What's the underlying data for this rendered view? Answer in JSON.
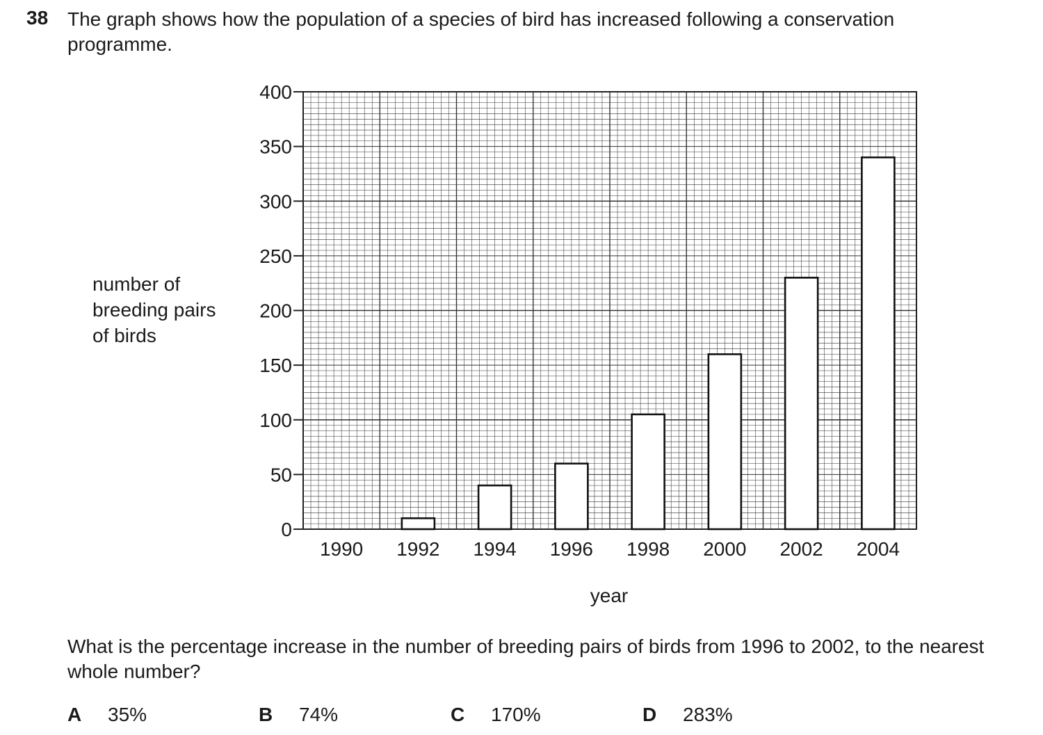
{
  "question": {
    "number": "38",
    "text": "The graph shows how the population of a species of bird has increased following a conservation programme.",
    "subquestion": "What is the percentage increase in the number of breeding pairs of birds from 1996 to 2002, to the nearest whole number?",
    "options": [
      {
        "letter": "A",
        "text": "35%"
      },
      {
        "letter": "B",
        "text": "74%"
      },
      {
        "letter": "C",
        "text": "170%"
      },
      {
        "letter": "D",
        "text": "283%"
      }
    ]
  },
  "chart_data": {
    "type": "bar",
    "title": "",
    "xlabel": "year",
    "ylabel_lines": [
      "number of",
      "breeding pairs",
      "of birds"
    ],
    "categories": [
      "1990",
      "1992",
      "1994",
      "1996",
      "1998",
      "2000",
      "2002",
      "2004"
    ],
    "values": [
      0,
      10,
      40,
      60,
      105,
      160,
      230,
      340
    ],
    "ylim": [
      0,
      400
    ],
    "yticks": [
      "0",
      "50",
      "100",
      "150",
      "200",
      "250",
      "300",
      "350",
      "400"
    ],
    "grid": true
  }
}
